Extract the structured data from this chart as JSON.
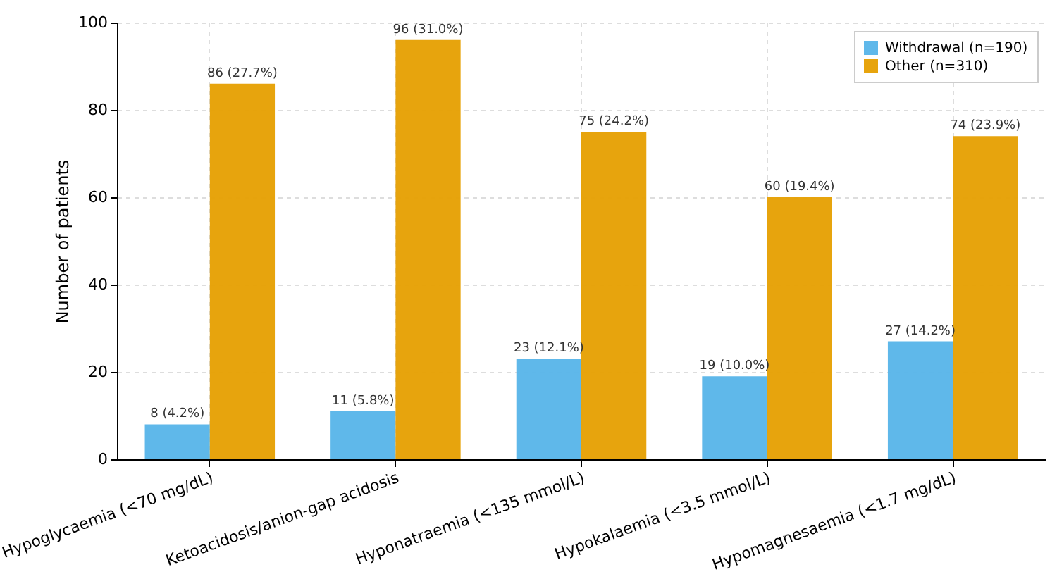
{
  "chart_data": {
    "type": "bar",
    "ylabel": "Number of patients",
    "categories": [
      "Hypoglycaemia (<70 mg/dL)",
      "Ketoacidosis/anion-gap acidosis",
      "Hyponatraemia (<135 mmol/L)",
      "Hypokalaemia (<3.5 mmol/L)",
      "Hypomagnesaemia (<1.7 mg/dL)"
    ],
    "series": [
      {
        "name": "Withdrawal (n=190)",
        "color": "#56b4e9",
        "values": [
          8,
          11,
          23,
          19,
          27
        ],
        "value_labels": [
          "8 (4.2%)",
          "11 (5.8%)",
          "23 (12.1%)",
          "19 (10.0%)",
          "27 (14.2%)"
        ]
      },
      {
        "name": "Other (n=310)",
        "color": "#e69f00",
        "values": [
          86,
          96,
          75,
          60,
          74
        ],
        "value_labels": [
          "86 (27.7%)",
          "96 (31.0%)",
          "75 (24.2%)",
          "60 (19.4%)",
          "74 (23.9%)"
        ]
      }
    ],
    "ylim": [
      0,
      100
    ],
    "yticks": [
      0,
      20,
      40,
      60,
      80,
      100
    ],
    "grid": true,
    "legend": "top right"
  }
}
